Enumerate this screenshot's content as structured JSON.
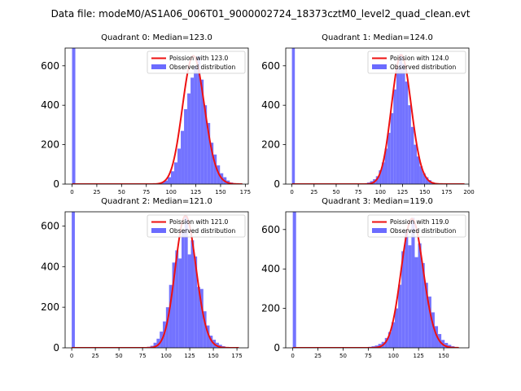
{
  "figure_title": "Data file: modeM0/AS1A06_006T01_9000002724_18373cztM0_level2_quad_clean.evt",
  "colors": {
    "observed": "#6b6bff",
    "poisson": "#ee1111",
    "axes": "#000000",
    "background": "#ffffff"
  },
  "chart_data": [
    {
      "type": "bar",
      "title": "Quadrant 0: Median=123.0",
      "median": 123.0,
      "xlim": [
        -7,
        178
      ],
      "ylim": [
        0,
        690
      ],
      "xticks": [
        0,
        25,
        50,
        75,
        100,
        125,
        150,
        175
      ],
      "yticks": [
        0,
        200,
        400,
        600
      ],
      "bin_width": 3.3,
      "bins": [
        {
          "x": 0,
          "count": 690
        },
        {
          "x": 90,
          "count": 8
        },
        {
          "x": 93.3,
          "count": 18
        },
        {
          "x": 96.6,
          "count": 35
        },
        {
          "x": 99.9,
          "count": 65
        },
        {
          "x": 103.2,
          "count": 110
        },
        {
          "x": 106.5,
          "count": 180
        },
        {
          "x": 109.8,
          "count": 270
        },
        {
          "x": 113.1,
          "count": 380
        },
        {
          "x": 116.4,
          "count": 460
        },
        {
          "x": 119.7,
          "count": 540
        },
        {
          "x": 123,
          "count": 600
        },
        {
          "x": 126.3,
          "count": 650
        },
        {
          "x": 129.6,
          "count": 530
        },
        {
          "x": 132.9,
          "count": 400
        },
        {
          "x": 136.2,
          "count": 310
        },
        {
          "x": 139.5,
          "count": 210
        },
        {
          "x": 142.8,
          "count": 150
        },
        {
          "x": 146.1,
          "count": 95
        },
        {
          "x": 149.4,
          "count": 55
        },
        {
          "x": 152.7,
          "count": 35
        },
        {
          "x": 156,
          "count": 18
        },
        {
          "x": 159.3,
          "count": 8
        }
      ],
      "poisson": {
        "mean": 123.0,
        "peak": 650,
        "x_range": [
          0,
          172
        ]
      },
      "legend": {
        "position": "upper right",
        "entries": [
          "Poission with 123.0",
          "Observed distribution"
        ]
      }
    },
    {
      "type": "bar",
      "title": "Quadrant 1: Median=124.0",
      "median": 124.0,
      "xlim": [
        -7,
        200
      ],
      "ylim": [
        0,
        690
      ],
      "xticks": [
        0,
        25,
        50,
        75,
        100,
        125,
        150,
        175,
        200
      ],
      "yticks": [
        0,
        200,
        400,
        600
      ],
      "bin_width": 3.3,
      "bins": [
        {
          "x": 0,
          "count": 690
        },
        {
          "x": 85,
          "count": 8
        },
        {
          "x": 88.3,
          "count": 15
        },
        {
          "x": 91.6,
          "count": 25
        },
        {
          "x": 94.9,
          "count": 40
        },
        {
          "x": 98.2,
          "count": 70
        },
        {
          "x": 101.5,
          "count": 110
        },
        {
          "x": 104.8,
          "count": 180
        },
        {
          "x": 108.1,
          "count": 260
        },
        {
          "x": 111.4,
          "count": 360
        },
        {
          "x": 114.7,
          "count": 480
        },
        {
          "x": 118,
          "count": 590
        },
        {
          "x": 121.3,
          "count": 660
        },
        {
          "x": 124.6,
          "count": 610
        },
        {
          "x": 127.9,
          "count": 520
        },
        {
          "x": 131.2,
          "count": 400
        },
        {
          "x": 134.5,
          "count": 290
        },
        {
          "x": 137.8,
          "count": 200
        },
        {
          "x": 141.1,
          "count": 140
        },
        {
          "x": 144.4,
          "count": 90
        },
        {
          "x": 147.7,
          "count": 55
        },
        {
          "x": 151,
          "count": 35
        },
        {
          "x": 154.3,
          "count": 20
        },
        {
          "x": 157.6,
          "count": 10
        },
        {
          "x": 160.9,
          "count": 5
        }
      ],
      "poisson": {
        "mean": 124.0,
        "peak": 655,
        "x_range": [
          0,
          195
        ]
      },
      "legend": {
        "position": "upper right",
        "entries": [
          "Poission with 124.0",
          "Observed distribution"
        ]
      }
    },
    {
      "type": "bar",
      "title": "Quadrant 2: Median=121.0",
      "median": 121.0,
      "xlim": [
        -7,
        187
      ],
      "ylim": [
        0,
        670
      ],
      "xticks": [
        0,
        25,
        50,
        75,
        100,
        125,
        150,
        175
      ],
      "yticks": [
        0,
        200,
        400,
        600
      ],
      "bin_width": 3.3,
      "bins": [
        {
          "x": 0,
          "count": 670
        },
        {
          "x": 80,
          "count": 5
        },
        {
          "x": 83.3,
          "count": 10
        },
        {
          "x": 86.6,
          "count": 25
        },
        {
          "x": 89.9,
          "count": 45
        },
        {
          "x": 93.2,
          "count": 80
        },
        {
          "x": 96.5,
          "count": 130
        },
        {
          "x": 99.8,
          "count": 200
        },
        {
          "x": 103.1,
          "count": 310
        },
        {
          "x": 106.4,
          "count": 420
        },
        {
          "x": 109.7,
          "count": 480
        },
        {
          "x": 113,
          "count": 440
        },
        {
          "x": 116.3,
          "count": 580
        },
        {
          "x": 119.6,
          "count": 650
        },
        {
          "x": 122.9,
          "count": 460
        },
        {
          "x": 126.2,
          "count": 530
        },
        {
          "x": 129.5,
          "count": 450
        },
        {
          "x": 132.8,
          "count": 300
        },
        {
          "x": 136.1,
          "count": 290
        },
        {
          "x": 139.4,
          "count": 180
        },
        {
          "x": 142.7,
          "count": 110
        },
        {
          "x": 146,
          "count": 60
        },
        {
          "x": 149.3,
          "count": 40
        },
        {
          "x": 152.6,
          "count": 25
        },
        {
          "x": 155.9,
          "count": 15
        },
        {
          "x": 159.2,
          "count": 8
        }
      ],
      "poisson": {
        "mean": 121.0,
        "peak": 650,
        "x_range": [
          0,
          177
        ]
      },
      "legend": {
        "position": "upper right",
        "entries": [
          "Poission with 121.0",
          "Observed distribution"
        ]
      }
    },
    {
      "type": "bar",
      "title": "Quadrant 3: Median=119.0",
      "median": 119.0,
      "xlim": [
        -7,
        175
      ],
      "ylim": [
        0,
        690
      ],
      "xticks": [
        0,
        25,
        50,
        75,
        100,
        125,
        150
      ],
      "yticks": [
        0,
        200,
        400,
        600
      ],
      "bin_width": 3.3,
      "bins": [
        {
          "x": 0,
          "count": 690
        },
        {
          "x": 75,
          "count": 5
        },
        {
          "x": 78.3,
          "count": 8
        },
        {
          "x": 81.6,
          "count": 12
        },
        {
          "x": 84.9,
          "count": 20
        },
        {
          "x": 88.2,
          "count": 30
        },
        {
          "x": 91.5,
          "count": 50
        },
        {
          "x": 94.8,
          "count": 80
        },
        {
          "x": 98.1,
          "count": 130
        },
        {
          "x": 101.4,
          "count": 200
        },
        {
          "x": 104.7,
          "count": 320
        },
        {
          "x": 108,
          "count": 490
        },
        {
          "x": 111.3,
          "count": 590
        },
        {
          "x": 114.6,
          "count": 520
        },
        {
          "x": 117.9,
          "count": 660
        },
        {
          "x": 121.2,
          "count": 460
        },
        {
          "x": 124.5,
          "count": 530
        },
        {
          "x": 127.8,
          "count": 430
        },
        {
          "x": 131.1,
          "count": 330
        },
        {
          "x": 134.4,
          "count": 260
        },
        {
          "x": 137.7,
          "count": 180
        },
        {
          "x": 141,
          "count": 110
        },
        {
          "x": 144.3,
          "count": 70
        },
        {
          "x": 147.6,
          "count": 40
        },
        {
          "x": 150.9,
          "count": 25
        },
        {
          "x": 154.2,
          "count": 15
        },
        {
          "x": 157.5,
          "count": 8
        }
      ],
      "poisson": {
        "mean": 119.0,
        "peak": 655,
        "x_range": [
          0,
          165
        ]
      },
      "legend": {
        "position": "upper right",
        "entries": [
          "Poission with 119.0",
          "Observed distribution"
        ]
      }
    }
  ]
}
